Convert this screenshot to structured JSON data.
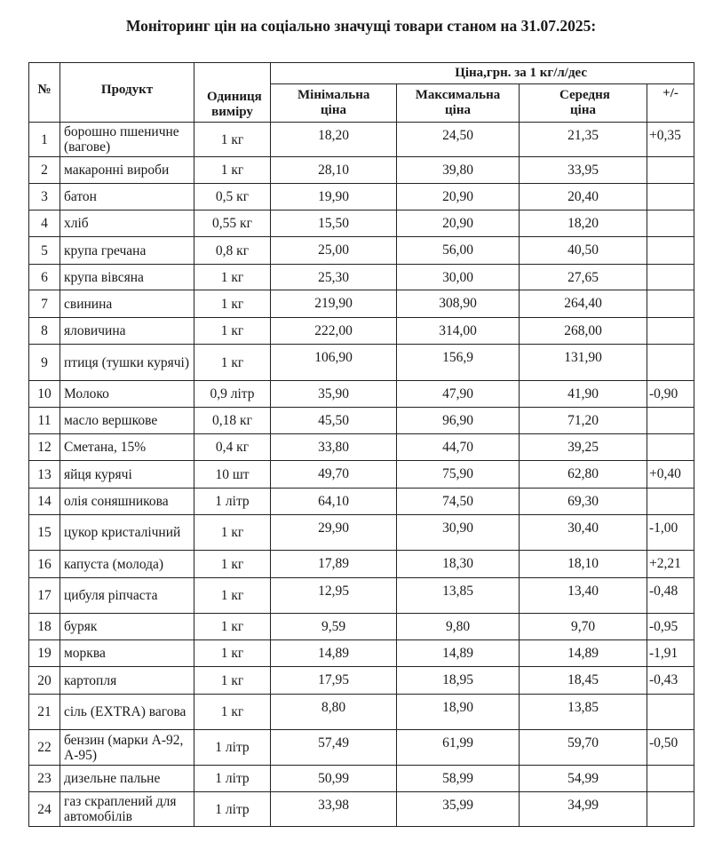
{
  "title": "Моніторинг цін на соціально значущі товари станом на 31.07.2025:",
  "table": {
    "headers": {
      "num": "№",
      "product": "Продукт",
      "unit": "Одиниця виміру",
      "price_group": "Ціна,грн. за 1 кг/л/дес",
      "min": "Мінімальна ціна",
      "max": "Максимальна ціна",
      "avg": "Середня ціна",
      "diff": "+/-"
    },
    "rows": [
      {
        "num": "1",
        "product": "борошно пшеничне (вагове)",
        "unit": "1 кг",
        "min": "18,20",
        "max": "24,50",
        "avg": "21,35",
        "diff": "+0,35"
      },
      {
        "num": "2",
        "product": "макаронні вироби",
        "unit": "1 кг",
        "min": "28,10",
        "max": "39,80",
        "avg": "33,95",
        "diff": ""
      },
      {
        "num": "3",
        "product": "батон",
        "unit": "0,5 кг",
        "min": "19,90",
        "max": "20,90",
        "avg": "20,40",
        "diff": ""
      },
      {
        "num": "4",
        "product": "хліб",
        "unit": "0,55 кг",
        "min": "15,50",
        "max": "20,90",
        "avg": "18,20",
        "diff": ""
      },
      {
        "num": "5",
        "product": "крупа гречана",
        "unit": "0,8 кг",
        "min": "25,00",
        "max": "56,00",
        "avg": "40,50",
        "diff": ""
      },
      {
        "num": "6",
        "product": "крупа вівсяна",
        "unit": "1 кг",
        "min": "25,30",
        "max": "30,00",
        "avg": "27,65",
        "diff": ""
      },
      {
        "num": "7",
        "product": "свинина",
        "unit": "1 кг",
        "min": "219,90",
        "max": "308,90",
        "avg": "264,40",
        "diff": ""
      },
      {
        "num": "8",
        "product": "яловичина",
        "unit": "1 кг",
        "min": "222,00",
        "max": "314,00",
        "avg": "268,00",
        "diff": ""
      },
      {
        "num": "9",
        "product": "птиця (тушки курячі)",
        "unit": "1 кг",
        "min": "106,90",
        "max": "156,9",
        "avg": "131,90",
        "diff": ""
      },
      {
        "num": "10",
        "product": "Молоко",
        "unit": "0,9 літр",
        "min": "35,90",
        "max": "47,90",
        "avg": "41,90",
        "diff": "-0,90"
      },
      {
        "num": "11",
        "product": "масло вершкове",
        "unit": "0,18 кг",
        "min": "45,50",
        "max": "96,90",
        "avg": "71,20",
        "diff": ""
      },
      {
        "num": "12",
        "product": "Сметана, 15%",
        "unit": "0,4 кг",
        "min": "33,80",
        "max": "44,70",
        "avg": "39,25",
        "diff": ""
      },
      {
        "num": "13",
        "product": "яйця курячі",
        "unit": "10 шт",
        "min": "49,70",
        "max": "75,90",
        "avg": "62,80",
        "diff": "+0,40"
      },
      {
        "num": "14",
        "product": "олія соняшникова",
        "unit": "1 літр",
        "min": "64,10",
        "max": "74,50",
        "avg": "69,30",
        "diff": ""
      },
      {
        "num": "15",
        "product": "цукор кристалічний",
        "unit": "1 кг",
        "min": "29,90",
        "max": "30,90",
        "avg": "30,40",
        "diff": "-1,00"
      },
      {
        "num": "16",
        "product": "капуста (молода)",
        "unit": "1 кг",
        "min": "17,89",
        "max": "18,30",
        "avg": "18,10",
        "diff": "+2,21"
      },
      {
        "num": "17",
        "product": "цибуля ріпчаста",
        "unit": "1 кг",
        "min": "12,95",
        "max": "13,85",
        "avg": "13,40",
        "diff": "-0,48"
      },
      {
        "num": "18",
        "product": "буряк",
        "unit": "1 кг",
        "min": "9,59",
        "max": "9,80",
        "avg": "9,70",
        "diff": "-0,95"
      },
      {
        "num": "19",
        "product": "морква",
        "unit": "1 кг",
        "min": "14,89",
        "max": "14,89",
        "avg": "14,89",
        "diff": "-1,91"
      },
      {
        "num": "20",
        "product": "картопля",
        "unit": "1 кг",
        "min": "17,95",
        "max": "18,95",
        "avg": "18,45",
        "diff": "-0,43"
      },
      {
        "num": "21",
        "product": "сіль (EXTRA) вагова",
        "unit": "1 кг",
        "min": "8,80",
        "max": "18,90",
        "avg": "13,85",
        "diff": ""
      },
      {
        "num": "22",
        "product": "бензин (марки А-92, А-95)",
        "unit": "1 літр",
        "min": "57,49",
        "max": "61,99",
        "avg": "59,70",
        "diff": "-0,50"
      },
      {
        "num": "23",
        "product": "дизельне пальне",
        "unit": "1 літр",
        "min": "50,99",
        "max": "58,99",
        "avg": "54,99",
        "diff": ""
      },
      {
        "num": "24",
        "product": "газ скраплений для автомобілів",
        "unit": "1 літр",
        "min": "33,98",
        "max": "35,99",
        "avg": "34,99",
        "diff": ""
      }
    ]
  }
}
